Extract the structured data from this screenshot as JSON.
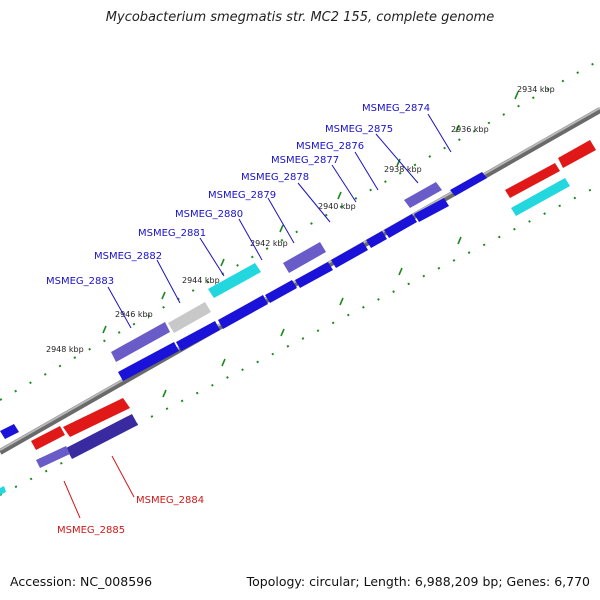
{
  "title": "Mycobacterium smegmatis str. MC2 155, complete genome",
  "footer": {
    "accession": "Accession: NC_008596",
    "summary": "Topology: circular; Length: 6,988,209 bp; Genes: 6,770"
  },
  "colors": {
    "forward": "#1a12d8",
    "hypothetical": "#6a5cc8",
    "rna_like": "#22d8de",
    "pseudo": "#c8c8c8",
    "reverse": "#e01818",
    "backbone": "#8a8a8a",
    "ticks": "#1e8a1e",
    "label_forward": "#1a12c8",
    "label_reverse": "#d01818"
  },
  "kbp_labels": [
    "2934 kbp",
    "2936 kbp",
    "2938 kbp",
    "2940 kbp",
    "2942 kbp",
    "2944 kbp",
    "2946 kbp",
    "2948 kbp"
  ],
  "genes_forward": [
    "MSMEG_2874",
    "MSMEG_2875",
    "MSMEG_2876",
    "MSMEG_2877",
    "MSMEG_2878",
    "MSMEG_2879",
    "MSMEG_2880",
    "MSMEG_2881",
    "MSMEG_2882",
    "MSMEG_2883"
  ],
  "genes_reverse": [
    "MSMEG_2884",
    "MSMEG_2885"
  ]
}
